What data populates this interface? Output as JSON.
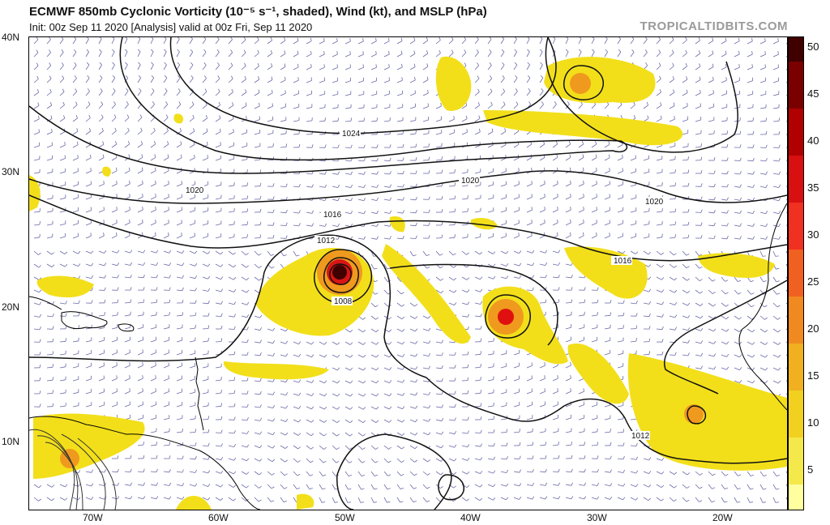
{
  "header": {
    "title": "ECMWF 850mb Cyclonic Vorticity (10⁻⁵ s⁻¹, shaded), Wind (kt), and MSLP (hPa)",
    "init": "Init: 00z Sep 11 2020   [Analysis]   valid at 00z Fri, Sep 11 2020",
    "credit": "TROPICALTIDBITS.COM"
  },
  "axes": {
    "lat_labels": [
      "40N",
      "30N",
      "20N",
      "10N"
    ],
    "lon_labels": [
      "70W",
      "60W",
      "50W",
      "40W",
      "30W",
      "20W"
    ]
  },
  "isobars": {
    "labels": [
      "1024",
      "1020",
      "1020",
      "1020",
      "1016",
      "1016",
      "1012",
      "1012",
      "1008"
    ]
  },
  "colorbar": {
    "labels": [
      "50",
      "45",
      "40",
      "35",
      "30",
      "25",
      "20",
      "15",
      "10",
      "5"
    ],
    "colors": {
      "low": "#ffff66",
      "yellow": "#f4e000",
      "orange": "#f0a020",
      "red": "#e01010",
      "dark": "#8a0000",
      "darkest": "#400000"
    }
  },
  "colors": {
    "vorticity_fill": "#f2df1a",
    "vorticity_core_orange": "#ef9a1e",
    "vorticity_core_red": "#d81515",
    "isobar": "#111111",
    "wind_barb": "#6a6aa8",
    "coastline": "#000000"
  }
}
